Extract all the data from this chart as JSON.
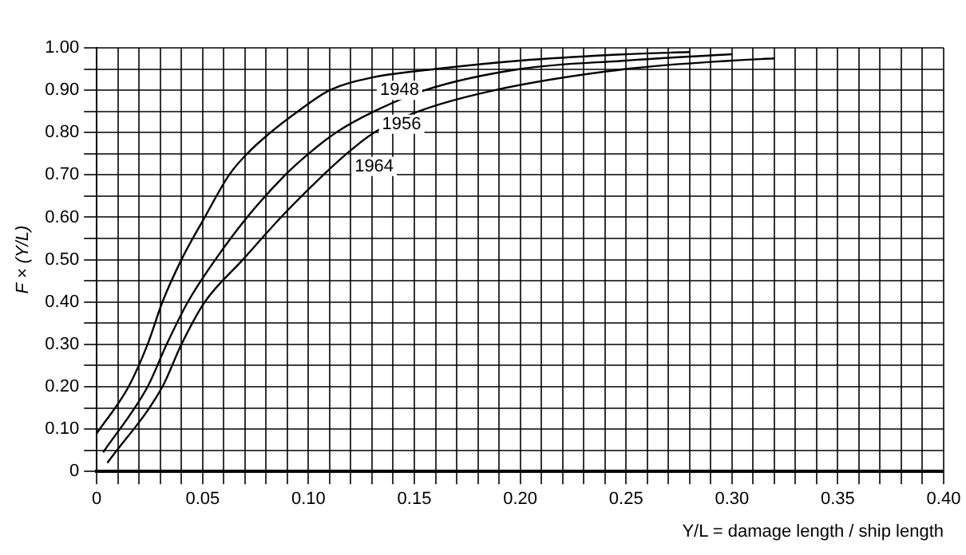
{
  "chart_data": {
    "type": "line",
    "ylabel": "F × (Y/L)",
    "xlabel": "Y/L = damage length / ship length",
    "xlim": [
      0,
      0.4
    ],
    "ylim": [
      0,
      1.0
    ],
    "xticks": [
      0,
      {
        "value": 0.01,
        "label": null
      },
      {
        "value": 0.02,
        "label": null
      },
      {
        "value": 0.03,
        "label": null
      },
      {
        "value": 0.04,
        "label": null
      },
      {
        "value": 0.05,
        "label": "0.05"
      },
      {
        "value": 0.06,
        "label": null
      },
      {
        "value": 0.07,
        "label": null
      },
      {
        "value": 0.08,
        "label": null
      },
      {
        "value": 0.09,
        "label": null
      },
      {
        "value": 0.1,
        "label": "0.10"
      },
      {
        "value": 0.11,
        "label": null
      },
      {
        "value": 0.12,
        "label": null
      },
      {
        "value": 0.13,
        "label": null
      },
      {
        "value": 0.14,
        "label": null
      },
      {
        "value": 0.15,
        "label": "0.15"
      },
      {
        "value": 0.16,
        "label": null
      },
      {
        "value": 0.17,
        "label": null
      },
      {
        "value": 0.18,
        "label": null
      },
      {
        "value": 0.19,
        "label": null
      },
      {
        "value": 0.2,
        "label": "0.20"
      },
      {
        "value": 0.21,
        "label": null
      },
      {
        "value": 0.22,
        "label": null
      },
      {
        "value": 0.23,
        "label": null
      },
      {
        "value": 0.24,
        "label": null
      },
      {
        "value": 0.25,
        "label": "0.25"
      },
      {
        "value": 0.26,
        "label": null
      },
      {
        "value": 0.27,
        "label": null
      },
      {
        "value": 0.28,
        "label": null
      },
      {
        "value": 0.29,
        "label": null
      },
      {
        "value": 0.3,
        "label": "0.30"
      },
      {
        "value": 0.31,
        "label": null
      },
      {
        "value": 0.32,
        "label": null
      },
      {
        "value": 0.33,
        "label": null
      },
      {
        "value": 0.34,
        "label": null
      },
      {
        "value": 0.35,
        "label": "0.35"
      },
      {
        "value": 0.36,
        "label": null
      },
      {
        "value": 0.37,
        "label": null
      },
      {
        "value": 0.38,
        "label": null
      },
      {
        "value": 0.39,
        "label": null
      },
      {
        "value": 0.4,
        "label": "0.40"
      }
    ],
    "yticks": [
      0,
      {
        "value": 0.05,
        "label": null
      },
      {
        "value": 0.1,
        "label": "0.10"
      },
      {
        "value": 0.15,
        "label": null
      },
      {
        "value": 0.2,
        "label": "0.20"
      },
      {
        "value": 0.25,
        "label": null
      },
      {
        "value": 0.3,
        "label": "0.30"
      },
      {
        "value": 0.35,
        "label": null
      },
      {
        "value": 0.4,
        "label": "0.40"
      },
      {
        "value": 0.45,
        "label": null
      },
      {
        "value": 0.5,
        "label": "0.50"
      },
      {
        "value": 0.55,
        "label": null
      },
      {
        "value": 0.6,
        "label": "0.60"
      },
      {
        "value": 0.65,
        "label": null
      },
      {
        "value": 0.7,
        "label": "0.70"
      },
      {
        "value": 0.75,
        "label": null
      },
      {
        "value": 0.8,
        "label": "0.80"
      },
      {
        "value": 0.85,
        "label": null
      },
      {
        "value": 0.9,
        "label": "0.90"
      },
      {
        "value": 0.95,
        "label": null
      },
      {
        "value": 1.0,
        "label": "1.00"
      }
    ],
    "grid": true,
    "marker": "none",
    "line_style": "solid",
    "series": [
      {
        "name": "1948",
        "color": "#000000",
        "x": [
          0,
          0.015,
          0.024,
          0.031,
          0.04,
          0.051,
          0.0625,
          0.071,
          0.082,
          0.095,
          0.11,
          0.13,
          0.16,
          0.2,
          0.25,
          0.28
        ],
        "values": [
          0.09,
          0.2,
          0.3,
          0.4,
          0.5,
          0.6,
          0.7,
          0.75,
          0.8,
          0.85,
          0.9,
          0.93,
          0.95,
          0.97,
          0.985,
          0.99
        ]
      },
      {
        "name": "1956",
        "color": "#000000",
        "x": [
          0.003,
          0.024,
          0.033,
          0.043,
          0.056,
          0.071,
          0.089,
          0.1,
          0.113,
          0.131,
          0.155,
          0.2,
          0.25,
          0.3
        ],
        "values": [
          0.045,
          0.2,
          0.3,
          0.4,
          0.5,
          0.6,
          0.7,
          0.75,
          0.8,
          0.85,
          0.9,
          0.95,
          0.97,
          0.985
        ]
      },
      {
        "name": "1964",
        "color": "#000000",
        "x": [
          0.005,
          0.031,
          0.04,
          0.051,
          0.069,
          0.087,
          0.107,
          0.118,
          0.131,
          0.152,
          0.188,
          0.25,
          0.3,
          0.32
        ],
        "values": [
          0.02,
          0.2,
          0.3,
          0.4,
          0.5,
          0.6,
          0.7,
          0.75,
          0.8,
          0.85,
          0.9,
          0.95,
          0.97,
          0.975
        ]
      }
    ]
  }
}
